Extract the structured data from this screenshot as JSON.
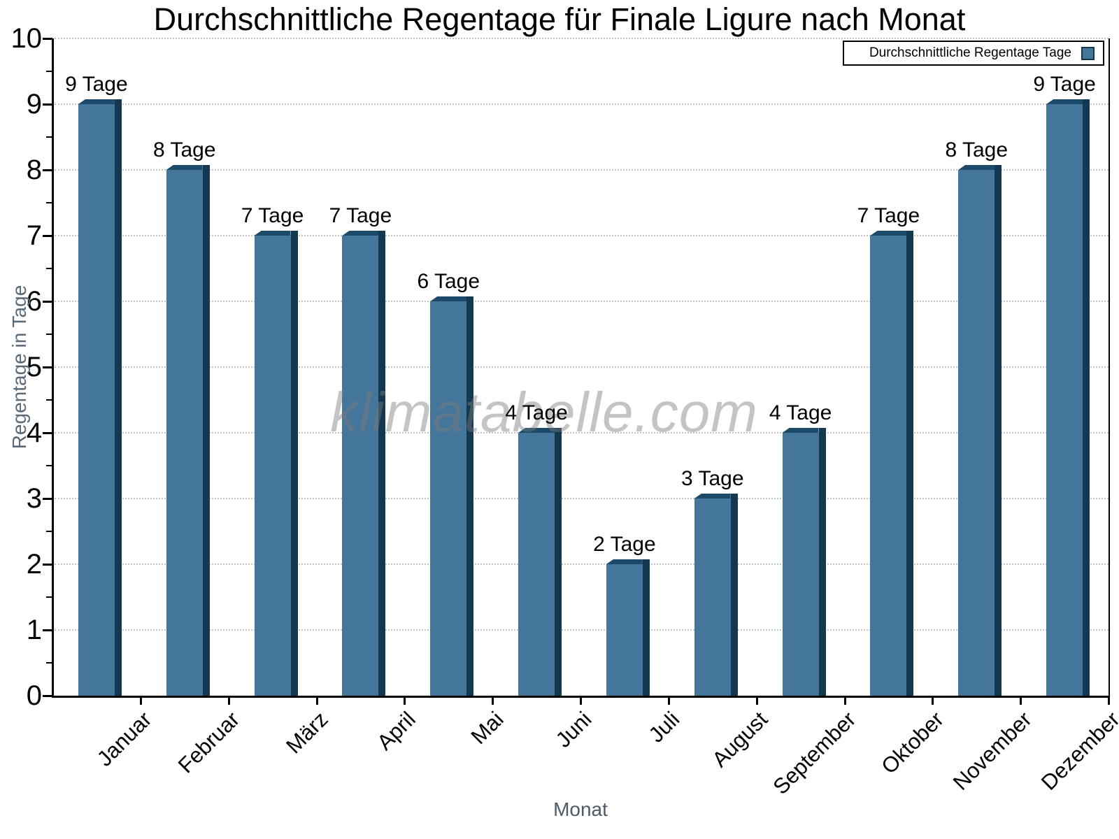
{
  "chart": {
    "title": "Durchschnittliche Regentage für Finale Ligure nach Monat",
    "xlabel": "Monat",
    "ylabel": "Regentage in Tage",
    "legend_label": "Durchschnittliche Regentage Tage",
    "watermark": "klimatabelle.com"
  },
  "chart_data": {
    "type": "bar",
    "title": "Durchschnittliche Regentage für Finale Ligure nach Monat",
    "xlabel": "Monat",
    "ylabel": "Regentage in Tage",
    "categories": [
      "Januar",
      "Februar",
      "März",
      "April",
      "Mai",
      "Juni",
      "Juli",
      "August",
      "September",
      "Oktober",
      "November",
      "Dezember"
    ],
    "values": [
      9,
      8,
      7,
      7,
      6,
      4,
      2,
      3,
      4,
      7,
      8,
      9
    ],
    "bar_labels": [
      "9 Tage",
      "8 Tage",
      "7 Tage",
      "7 Tage",
      "6 Tage",
      "4 Tage",
      "2 Tage",
      "3 Tage",
      "4 Tage",
      "7 Tage",
      "8 Tage",
      "9 Tage"
    ],
    "ylim": [
      0,
      10
    ],
    "yticks": [
      0,
      1,
      2,
      3,
      4,
      5,
      6,
      7,
      8,
      9,
      10
    ],
    "minor_ytick_step": 0.5,
    "grid": "horizontal dotted",
    "legend": {
      "entries": [
        "Durchschnittliche Regentage Tage"
      ],
      "position": "top-right"
    },
    "watermark": "klimatabelle.com"
  },
  "colors": {
    "bar_face": "#44769B",
    "bar_side": "#14384F",
    "bar_top": "#1C4A68",
    "grid": "#c3c3c3",
    "axis": "#000000",
    "ylabel_color": "#5a6a79",
    "xlabel_color": "#4d5a67",
    "watermark_color": "rgba(125,125,125,0.45)"
  }
}
